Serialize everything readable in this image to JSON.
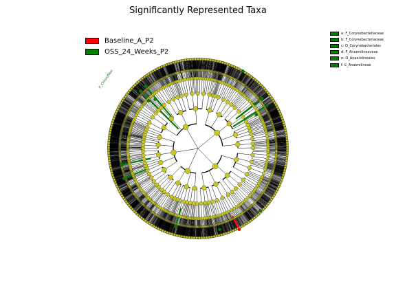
{
  "title": "Significantly Represented Taxa",
  "legend": [
    {
      "label": "Baseline_A_P2",
      "color": "#ff0000"
    },
    {
      "label": "OSS_24_Weeks_P2",
      "color": "#008000"
    }
  ],
  "clade_key": [
    {
      "label": "a: F_Corynebacteriaceae",
      "color": "#008000"
    },
    {
      "label": "b: F_Corynebacteriaceae",
      "color": "#008000"
    },
    {
      "label": "c: O_Corynebacteriales",
      "color": "#008000"
    },
    {
      "label": "d: F_Anaerolineaceae",
      "color": "#008000"
    },
    {
      "label": "e: O_Anaerolineales",
      "color": "#008000"
    },
    {
      "label": "f: C_Anaerolineae",
      "color": "#008000"
    }
  ],
  "clade_label": "P_Chloroflexi",
  "colors": {
    "node": "#c8c820",
    "edge": "#000000",
    "highlight_green": "#008000",
    "highlight_red": "#ff0000"
  }
}
